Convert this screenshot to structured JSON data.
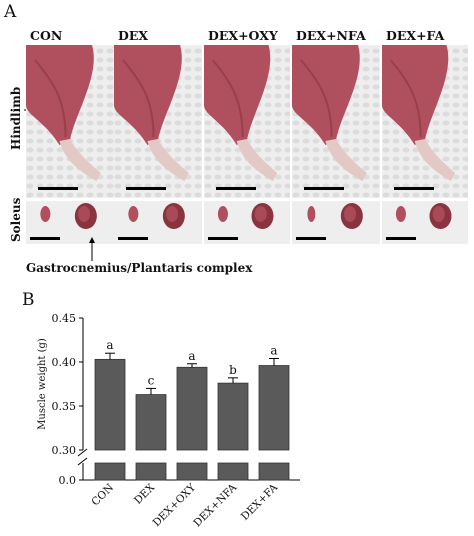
{
  "figure": {
    "panel_a_letter": "A",
    "panel_b_letter": "B",
    "groups": [
      "CON",
      "DEX",
      "DEX+OXY",
      "DEX+NFA",
      "DEX+FA"
    ],
    "row_labels": {
      "hindlimb": "Hindlimb",
      "soleus": "Soleus"
    },
    "gastrocnemius_caption": "Gastrocnemius/Plantaris complex"
  },
  "colors": {
    "tissue": "#b0505e",
    "tissue_dark": "#8a3440",
    "fur": "#e2c9c6",
    "background_cloth": "#eeeeee",
    "bar_fill": "#5a5a5a"
  },
  "chart_data": {
    "type": "bar",
    "categories": [
      "CON",
      "DEX",
      "DEX+OXY",
      "DEX+NFA",
      "DEX+FA"
    ],
    "values": [
      0.403,
      0.363,
      0.394,
      0.376,
      0.396
    ],
    "errors": [
      0.007,
      0.007,
      0.004,
      0.006,
      0.008
    ],
    "significance_letters": [
      "a",
      "c",
      "a",
      "b",
      "a"
    ],
    "ylabel": "Muscle weight (g)",
    "xlabel": "",
    "title": "",
    "ylim_upper": [
      0.3,
      0.45
    ],
    "ylim_lower": [
      0.0,
      0.0
    ],
    "broken_axis": true,
    "yticks_upper": [
      "0.30",
      "0.35",
      "0.40",
      "0.45"
    ],
    "yticks_lower": [
      "0.0"
    ],
    "grid": false
  }
}
